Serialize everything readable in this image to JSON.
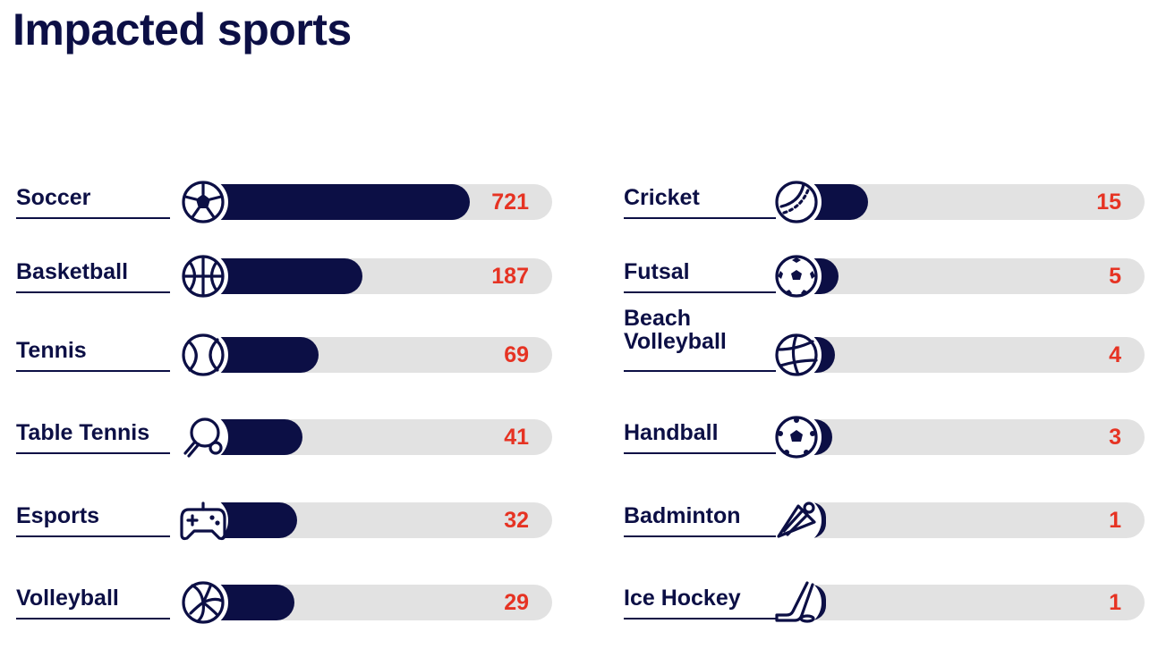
{
  "title": "Impacted sports",
  "colors": {
    "bar": "#0c0f45",
    "track": "#e2e2e2",
    "value": "#e63323",
    "text": "#0c0f45"
  },
  "chart_data": [
    {
      "type": "bar",
      "orientation": "horizontal",
      "categories": [
        "Soccer",
        "Basketball",
        "Tennis",
        "Table Tennis",
        "Esports",
        "Volleyball"
      ],
      "values": [
        721,
        187,
        69,
        41,
        32,
        29
      ],
      "icons": [
        "soccer-ball-icon",
        "basketball-icon",
        "tennis-ball-icon",
        "ping-pong-paddle-icon",
        "gamepad-icon",
        "volleyball-icon"
      ]
    },
    {
      "type": "bar",
      "orientation": "horizontal",
      "categories": [
        "Cricket",
        "Futsal",
        "Beach\nVolleyball",
        "Handball",
        "Badminton",
        "Ice Hockey"
      ],
      "values": [
        15,
        5,
        4,
        3,
        1,
        1
      ],
      "icons": [
        "cricket-ball-icon",
        "futsal-ball-icon",
        "beach-volleyball-icon",
        "handball-icon",
        "shuttlecock-icon",
        "hockey-stick-icon"
      ]
    }
  ]
}
